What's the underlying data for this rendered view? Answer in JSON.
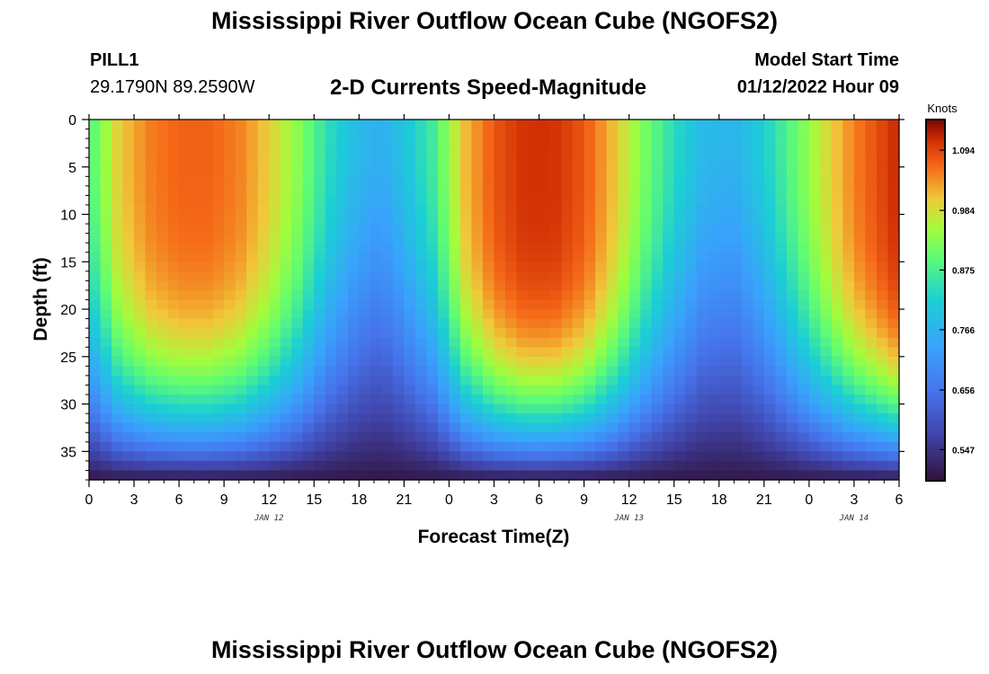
{
  "header": {
    "title": "Mississippi River Outflow Ocean Cube (NGOFS2)",
    "station_id": "PILL1",
    "coords": "29.1790N  89.2590W",
    "model_start_label": "Model Start Time",
    "model_start_time": "01/12/2022 Hour 09"
  },
  "footer": {
    "title": "Mississippi River Outflow Ocean Cube (NGOFS2)"
  },
  "chart_data": {
    "type": "heatmap",
    "title": "2-D Currents Speed-Magnitude",
    "xlabel": "Forecast Time(Z)",
    "ylabel": "Depth (ft)",
    "x_ticks": [
      "0",
      "3",
      "6",
      "9",
      "12",
      "15",
      "18",
      "21",
      "0",
      "3",
      "6",
      "9",
      "12",
      "15",
      "18",
      "21",
      "0",
      "3",
      "6"
    ],
    "x_tick_hours": [
      0,
      3,
      6,
      9,
      12,
      15,
      18,
      21,
      24,
      27,
      30,
      33,
      36,
      39,
      42,
      45,
      48,
      51,
      54
    ],
    "xlim_hours": [
      0,
      54
    ],
    "date_labels": [
      {
        "text": "JAN 12",
        "hour": 12
      },
      {
        "text": "JAN 13",
        "hour": 36
      },
      {
        "text": "JAN 14",
        "hour": 51
      }
    ],
    "y_ticks": [
      0,
      5,
      10,
      15,
      20,
      25,
      30,
      35
    ],
    "ylim": [
      0,
      38
    ],
    "y_inverted": true,
    "colorbar": {
      "label": "Knots",
      "ticks": [
        "1.094",
        "0.984",
        "0.875",
        "0.766",
        "0.656",
        "0.547"
      ],
      "tick_values": [
        1.094,
        0.984,
        0.875,
        0.766,
        0.656,
        0.547
      ],
      "range": [
        0.49,
        1.15
      ]
    },
    "grid_cols": 72,
    "grid_rows": 38,
    "surface_speed_by_hour": [
      [
        0,
        0.88
      ],
      [
        1,
        0.94
      ],
      [
        2,
        1.0
      ],
      [
        4,
        1.05
      ],
      [
        6,
        1.07
      ],
      [
        8,
        1.07
      ],
      [
        10,
        1.05
      ],
      [
        12,
        1.0
      ],
      [
        14,
        0.93
      ],
      [
        16,
        0.84
      ],
      [
        18,
        0.78
      ],
      [
        19.5,
        0.76
      ],
      [
        21,
        0.8
      ],
      [
        23,
        0.87
      ],
      [
        25,
        1.01
      ],
      [
        27,
        1.08
      ],
      [
        29,
        1.11
      ],
      [
        31,
        1.11
      ],
      [
        33,
        1.08
      ],
      [
        35,
        1.01
      ],
      [
        37,
        0.92
      ],
      [
        39,
        0.84
      ],
      [
        41,
        0.78
      ],
      [
        43,
        0.77
      ],
      [
        45,
        0.82
      ],
      [
        47,
        0.9
      ],
      [
        49,
        0.98
      ],
      [
        51,
        1.05
      ],
      [
        54,
        1.12
      ]
    ],
    "bottom_speed": 0.5
  }
}
